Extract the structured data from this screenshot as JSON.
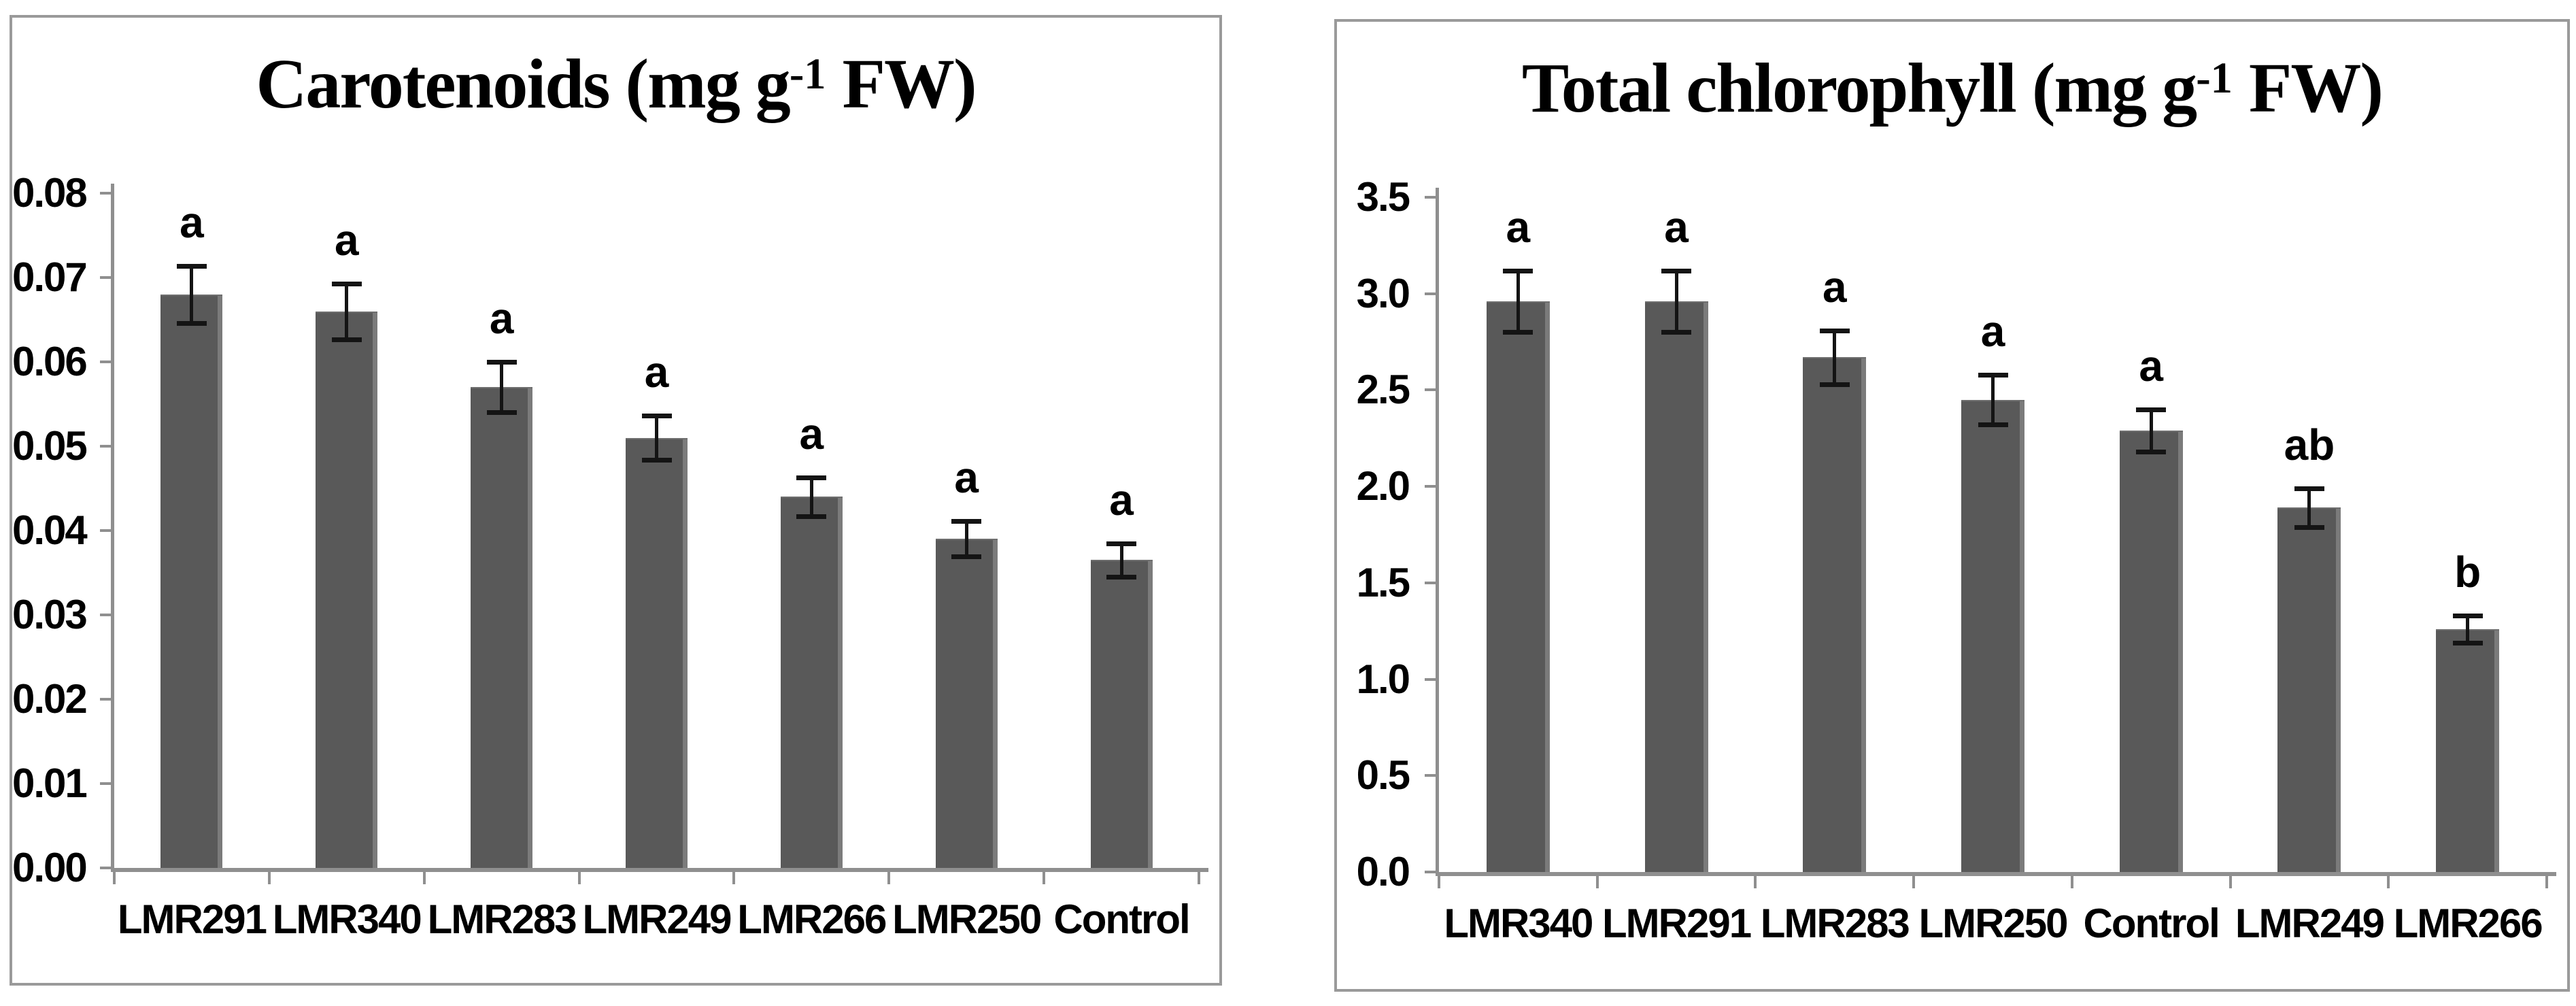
{
  "figure": {
    "background": "#ffffff",
    "panel_border_color": "#9a9a9a",
    "bar_color": "#595959",
    "axis_color": "#8f8f8f",
    "error_bar_color": "#141414",
    "text_color": "#000000"
  },
  "chart_data": [
    {
      "type": "bar",
      "title": "Carotenoids (mg g⁻¹ FW)",
      "title_parts": {
        "prefix": "Carotenoids (mg g",
        "sup": "-1",
        "suffix": " FW)"
      },
      "categories": [
        "LMR291",
        "LMR340",
        "LMR283",
        "LMR249",
        "LMR266",
        "LMR250",
        "Control"
      ],
      "values": [
        0.068,
        0.066,
        0.057,
        0.051,
        0.044,
        0.039,
        0.0365
      ],
      "errors": [
        0.0034,
        0.0033,
        0.003,
        0.0026,
        0.0023,
        0.0021,
        0.002
      ],
      "sig_letters": [
        "a",
        "a",
        "a",
        "a",
        "a",
        "a",
        "a"
      ],
      "xlabel": "",
      "ylabel": "",
      "ylim": [
        0,
        0.08
      ],
      "ytick_step": 0.01,
      "ytick_labels": [
        "0.00",
        "0.01",
        "0.02",
        "0.03",
        "0.04",
        "0.05",
        "0.06",
        "0.07",
        "0.08"
      ],
      "grid": false,
      "legend": null
    },
    {
      "type": "bar",
      "title": "Total chlorophyll (mg g⁻¹ FW)",
      "title_parts": {
        "prefix": "Total chlorophyll (mg g",
        "sup": "-1",
        "suffix": " FW)"
      },
      "categories": [
        "LMR340",
        "LMR291",
        "LMR283",
        "LMR250",
        "Control",
        "LMR249",
        "LMR266"
      ],
      "values": [
        2.96,
        2.96,
        2.67,
        2.45,
        2.29,
        1.89,
        1.26
      ],
      "errors": [
        0.16,
        0.16,
        0.14,
        0.13,
        0.11,
        0.1,
        0.07
      ],
      "sig_letters": [
        "a",
        "a",
        "a",
        "a",
        "a",
        "ab",
        "b"
      ],
      "xlabel": "",
      "ylabel": "",
      "ylim": [
        0,
        3.5
      ],
      "ytick_step": 0.5,
      "ytick_labels": [
        "0.0",
        "0.5",
        "1.0",
        "1.5",
        "2.0",
        "2.5",
        "3.0",
        "3.5"
      ],
      "grid": false,
      "legend": null
    }
  ]
}
